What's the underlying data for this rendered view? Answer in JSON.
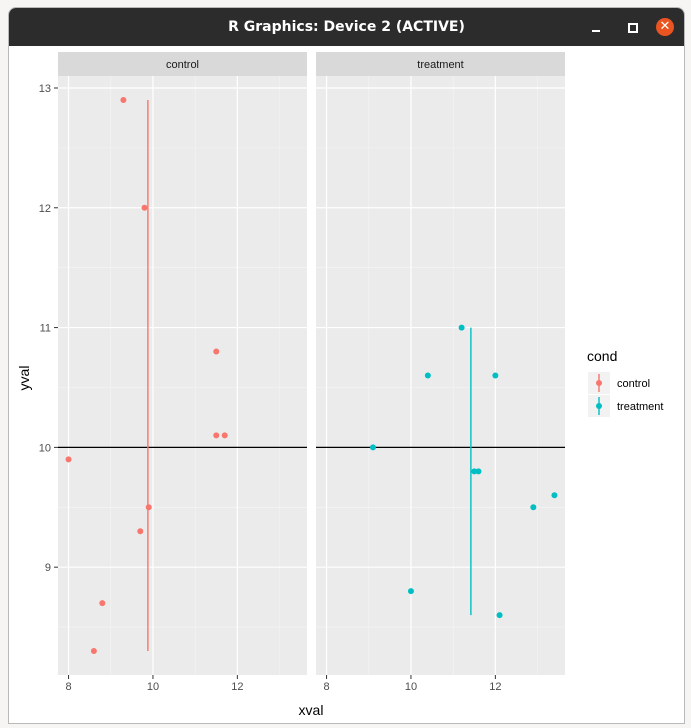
{
  "window": {
    "title": "R Graphics: Device 2 (ACTIVE)",
    "controls": {
      "minimize_icon": "minimize-icon",
      "maximize_icon": "maximize-icon",
      "close_icon": "close-icon"
    }
  },
  "chart_data": {
    "type": "scatter",
    "facet_variable": "cond",
    "panels": [
      "control",
      "treatment"
    ],
    "xlabel": "xval",
    "ylabel": "yval",
    "xlim": [
      7.75,
      13.65
    ],
    "ylim": [
      8.1,
      13.1
    ],
    "x_ticks": [
      8,
      10,
      12
    ],
    "y_ticks": [
      9,
      10,
      11,
      12,
      13
    ],
    "hline": 10,
    "grid": true,
    "legend": {
      "title": "cond",
      "position": "right",
      "entries": [
        {
          "label": "control",
          "color": "#F8766D"
        },
        {
          "label": "treatment",
          "color": "#00BFC4"
        }
      ]
    },
    "series": [
      {
        "name": "control",
        "color": "#F8766D",
        "points": [
          {
            "x": 8.0,
            "y": 9.9
          },
          {
            "x": 8.6,
            "y": 8.3
          },
          {
            "x": 8.8,
            "y": 8.7
          },
          {
            "x": 9.3,
            "y": 12.9
          },
          {
            "x": 9.7,
            "y": 9.3
          },
          {
            "x": 9.8,
            "y": 12.0
          },
          {
            "x": 9.9,
            "y": 9.5
          },
          {
            "x": 11.5,
            "y": 10.8
          },
          {
            "x": 11.5,
            "y": 10.1
          },
          {
            "x": 11.7,
            "y": 10.1
          }
        ],
        "range_line": {
          "x": 9.88,
          "ymin": 8.3,
          "ymax": 12.9
        }
      },
      {
        "name": "treatment",
        "color": "#00BFC4",
        "points": [
          {
            "x": 9.1,
            "y": 10.0
          },
          {
            "x": 10.0,
            "y": 8.8
          },
          {
            "x": 10.4,
            "y": 10.6
          },
          {
            "x": 11.2,
            "y": 11.0
          },
          {
            "x": 11.5,
            "y": 9.8
          },
          {
            "x": 11.6,
            "y": 9.8
          },
          {
            "x": 12.0,
            "y": 10.6
          },
          {
            "x": 12.1,
            "y": 8.6
          },
          {
            "x": 12.9,
            "y": 9.5
          },
          {
            "x": 13.4,
            "y": 9.6
          }
        ],
        "range_line": {
          "x": 11.42,
          "ymin": 8.6,
          "ymax": 11.0
        }
      }
    ]
  }
}
